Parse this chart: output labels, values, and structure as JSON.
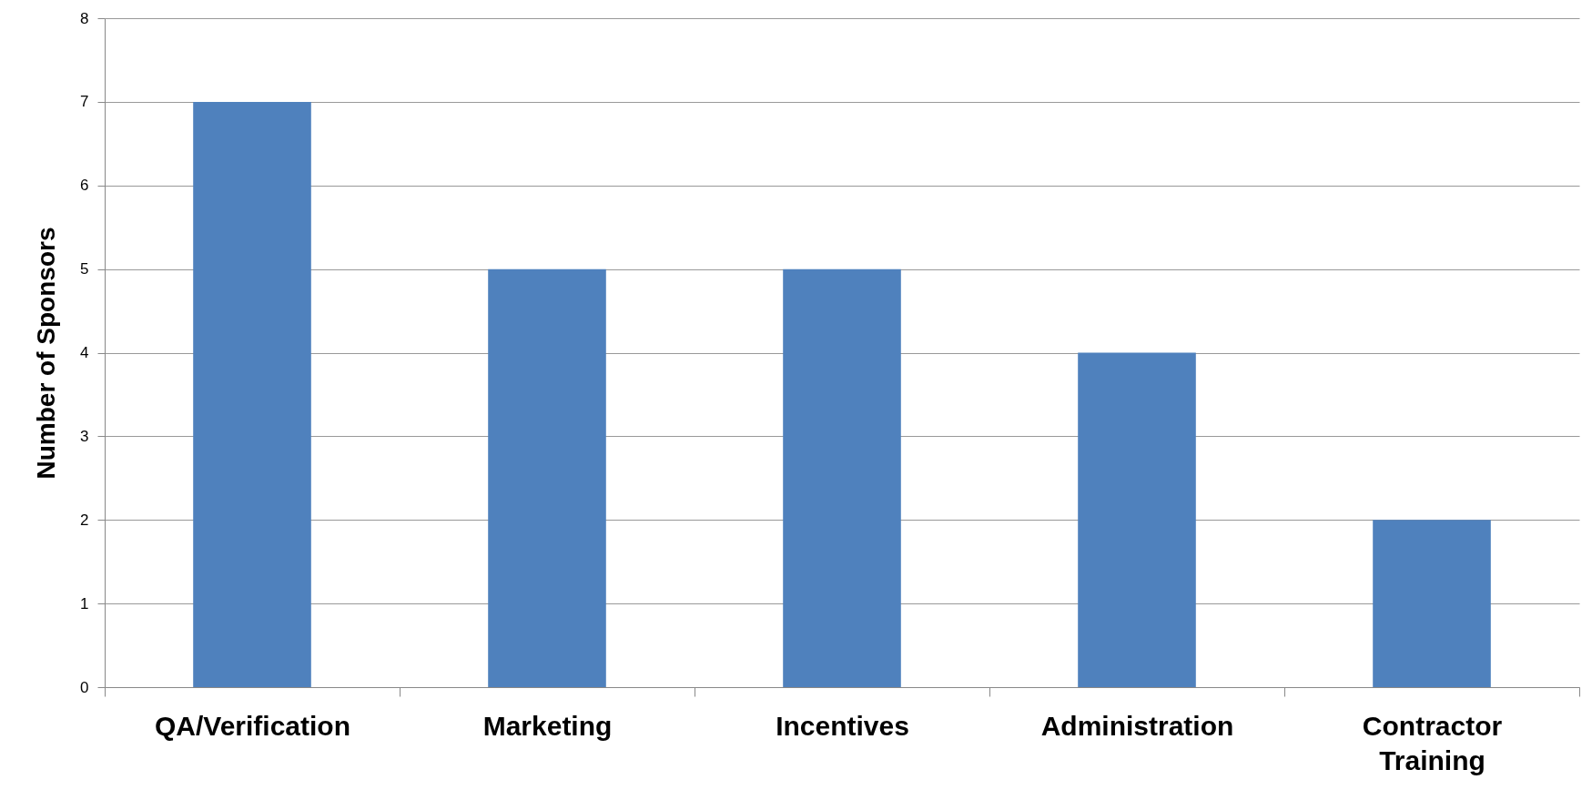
{
  "chart_data": {
    "type": "bar",
    "ylabel": "Number of Sponsors",
    "categories": [
      "QA/Verification",
      "Marketing",
      "Incentives",
      "Administration",
      "Contractor Training"
    ],
    "values": [
      7,
      5,
      5,
      4,
      2
    ],
    "color": "#4f81bd",
    "ylim": [
      0,
      8
    ],
    "yticks": [
      0,
      1,
      2,
      3,
      4,
      5,
      6,
      7,
      8
    ],
    "grid": true
  }
}
